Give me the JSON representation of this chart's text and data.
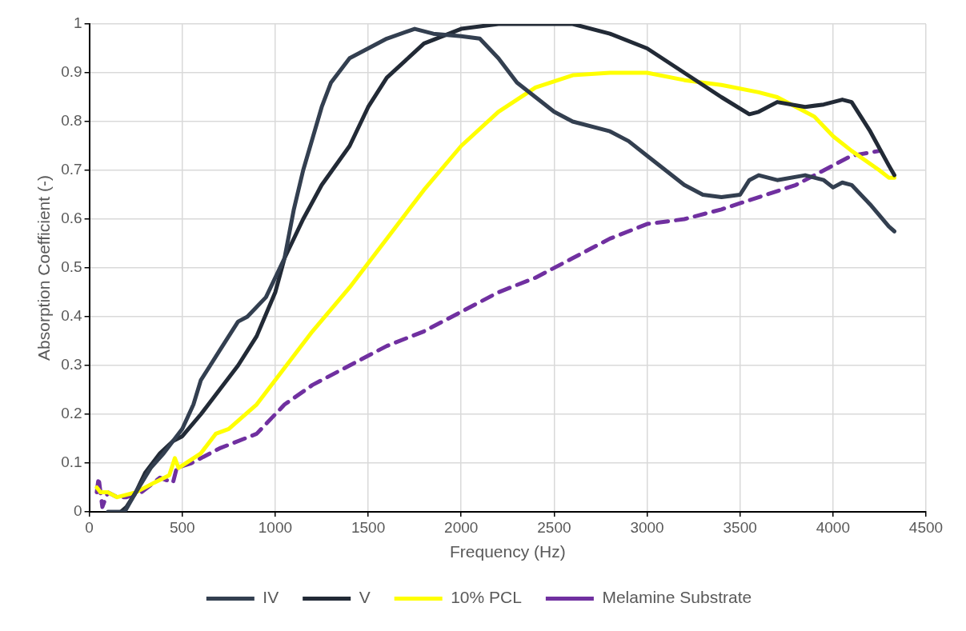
{
  "chart_data": {
    "type": "line",
    "xlabel": "Frequency (Hz)",
    "ylabel": "Absorption Coefficient (-)",
    "xlim": [
      0,
      4500
    ],
    "xticks": [
      0,
      500,
      1000,
      1500,
      2000,
      2500,
      3000,
      3500,
      4000,
      4500
    ],
    "ylim": [
      0,
      1
    ],
    "yticks": [
      0,
      0.1,
      0.2,
      0.3,
      0.4,
      0.5,
      0.6,
      0.7,
      0.8,
      0.9,
      1
    ],
    "grid": true,
    "legend": "bottom",
    "marker": "none",
    "series": [
      {
        "name": "IV",
        "color": "#333f50",
        "line_style": "solid",
        "x": [
          100,
          190,
          250,
          330,
          400,
          500,
          560,
          600,
          700,
          800,
          850,
          950,
          1050,
          1100,
          1150,
          1250,
          1300,
          1400,
          1500,
          1600,
          1750,
          1850,
          2000,
          2100,
          2200,
          2300,
          2400,
          2500,
          2600,
          2800,
          2900,
          3000,
          3100,
          3200,
          3300,
          3400,
          3500,
          3550,
          3600,
          3700,
          3850,
          3950,
          4000,
          4050,
          4100,
          4200,
          4300,
          4330
        ],
        "values": [
          0,
          0,
          0.04,
          0.09,
          0.12,
          0.17,
          0.22,
          0.27,
          0.33,
          0.39,
          0.4,
          0.44,
          0.52,
          0.62,
          0.7,
          0.83,
          0.88,
          0.93,
          0.95,
          0.97,
          0.99,
          0.98,
          0.975,
          0.97,
          0.93,
          0.88,
          0.85,
          0.82,
          0.8,
          0.78,
          0.76,
          0.73,
          0.7,
          0.67,
          0.65,
          0.645,
          0.65,
          0.68,
          0.69,
          0.68,
          0.69,
          0.68,
          0.665,
          0.675,
          0.67,
          0.63,
          0.585,
          0.575
        ]
      },
      {
        "name": "V",
        "color": "#222a36",
        "line_style": "solid",
        "x": [
          170,
          200,
          250,
          300,
          380,
          450,
          500,
          600,
          700,
          800,
          900,
          1000,
          1050,
          1150,
          1250,
          1400,
          1500,
          1600,
          1800,
          2000,
          2200,
          2600,
          2800,
          3000,
          3200,
          3400,
          3550,
          3600,
          3700,
          3850,
          3950,
          4050,
          4100,
          4200,
          4300,
          4330
        ],
        "values": [
          0,
          0.01,
          0.04,
          0.08,
          0.12,
          0.145,
          0.155,
          0.2,
          0.25,
          0.3,
          0.36,
          0.45,
          0.52,
          0.6,
          0.67,
          0.75,
          0.83,
          0.89,
          0.96,
          0.99,
          1,
          1,
          0.98,
          0.95,
          0.9,
          0.85,
          0.815,
          0.82,
          0.84,
          0.83,
          0.835,
          0.845,
          0.84,
          0.78,
          0.71,
          0.69
        ]
      },
      {
        "name": "10% PCL",
        "color": "#ffff00",
        "line_style": "solid",
        "x": [
          40,
          60,
          100,
          150,
          250,
          350,
          430,
          460,
          480,
          600,
          680,
          750,
          900,
          1000,
          1100,
          1200,
          1400,
          1600,
          1800,
          2000,
          2200,
          2400,
          2600,
          2800,
          3000,
          3200,
          3400,
          3600,
          3700,
          3900,
          4000,
          4100,
          4250,
          4300,
          4330
        ],
        "values": [
          0.05,
          0.04,
          0.04,
          0.03,
          0.04,
          0.06,
          0.075,
          0.11,
          0.09,
          0.12,
          0.16,
          0.17,
          0.22,
          0.27,
          0.32,
          0.37,
          0.46,
          0.56,
          0.66,
          0.75,
          0.82,
          0.87,
          0.895,
          0.9,
          0.9,
          0.885,
          0.875,
          0.86,
          0.85,
          0.81,
          0.77,
          0.74,
          0.7,
          0.685,
          0.685
        ]
      },
      {
        "name": "Melamine Substrate",
        "color": "#7030a0",
        "line_style": "dashed",
        "x": [
          40,
          50,
          70,
          100,
          150,
          200,
          280,
          380,
          450,
          470,
          550,
          700,
          900,
          1050,
          1200,
          1400,
          1600,
          1800,
          2000,
          2200,
          2400,
          2600,
          2800,
          3000,
          3200,
          3400,
          3600,
          3800,
          4000,
          4100,
          4250
        ],
        "values": [
          0.04,
          0.07,
          0.01,
          0.04,
          0.03,
          0.03,
          0.04,
          0.07,
          0.06,
          0.09,
          0.1,
          0.13,
          0.16,
          0.22,
          0.26,
          0.3,
          0.34,
          0.37,
          0.41,
          0.45,
          0.48,
          0.52,
          0.56,
          0.59,
          0.6,
          0.62,
          0.645,
          0.67,
          0.71,
          0.73,
          0.74
        ]
      }
    ]
  }
}
